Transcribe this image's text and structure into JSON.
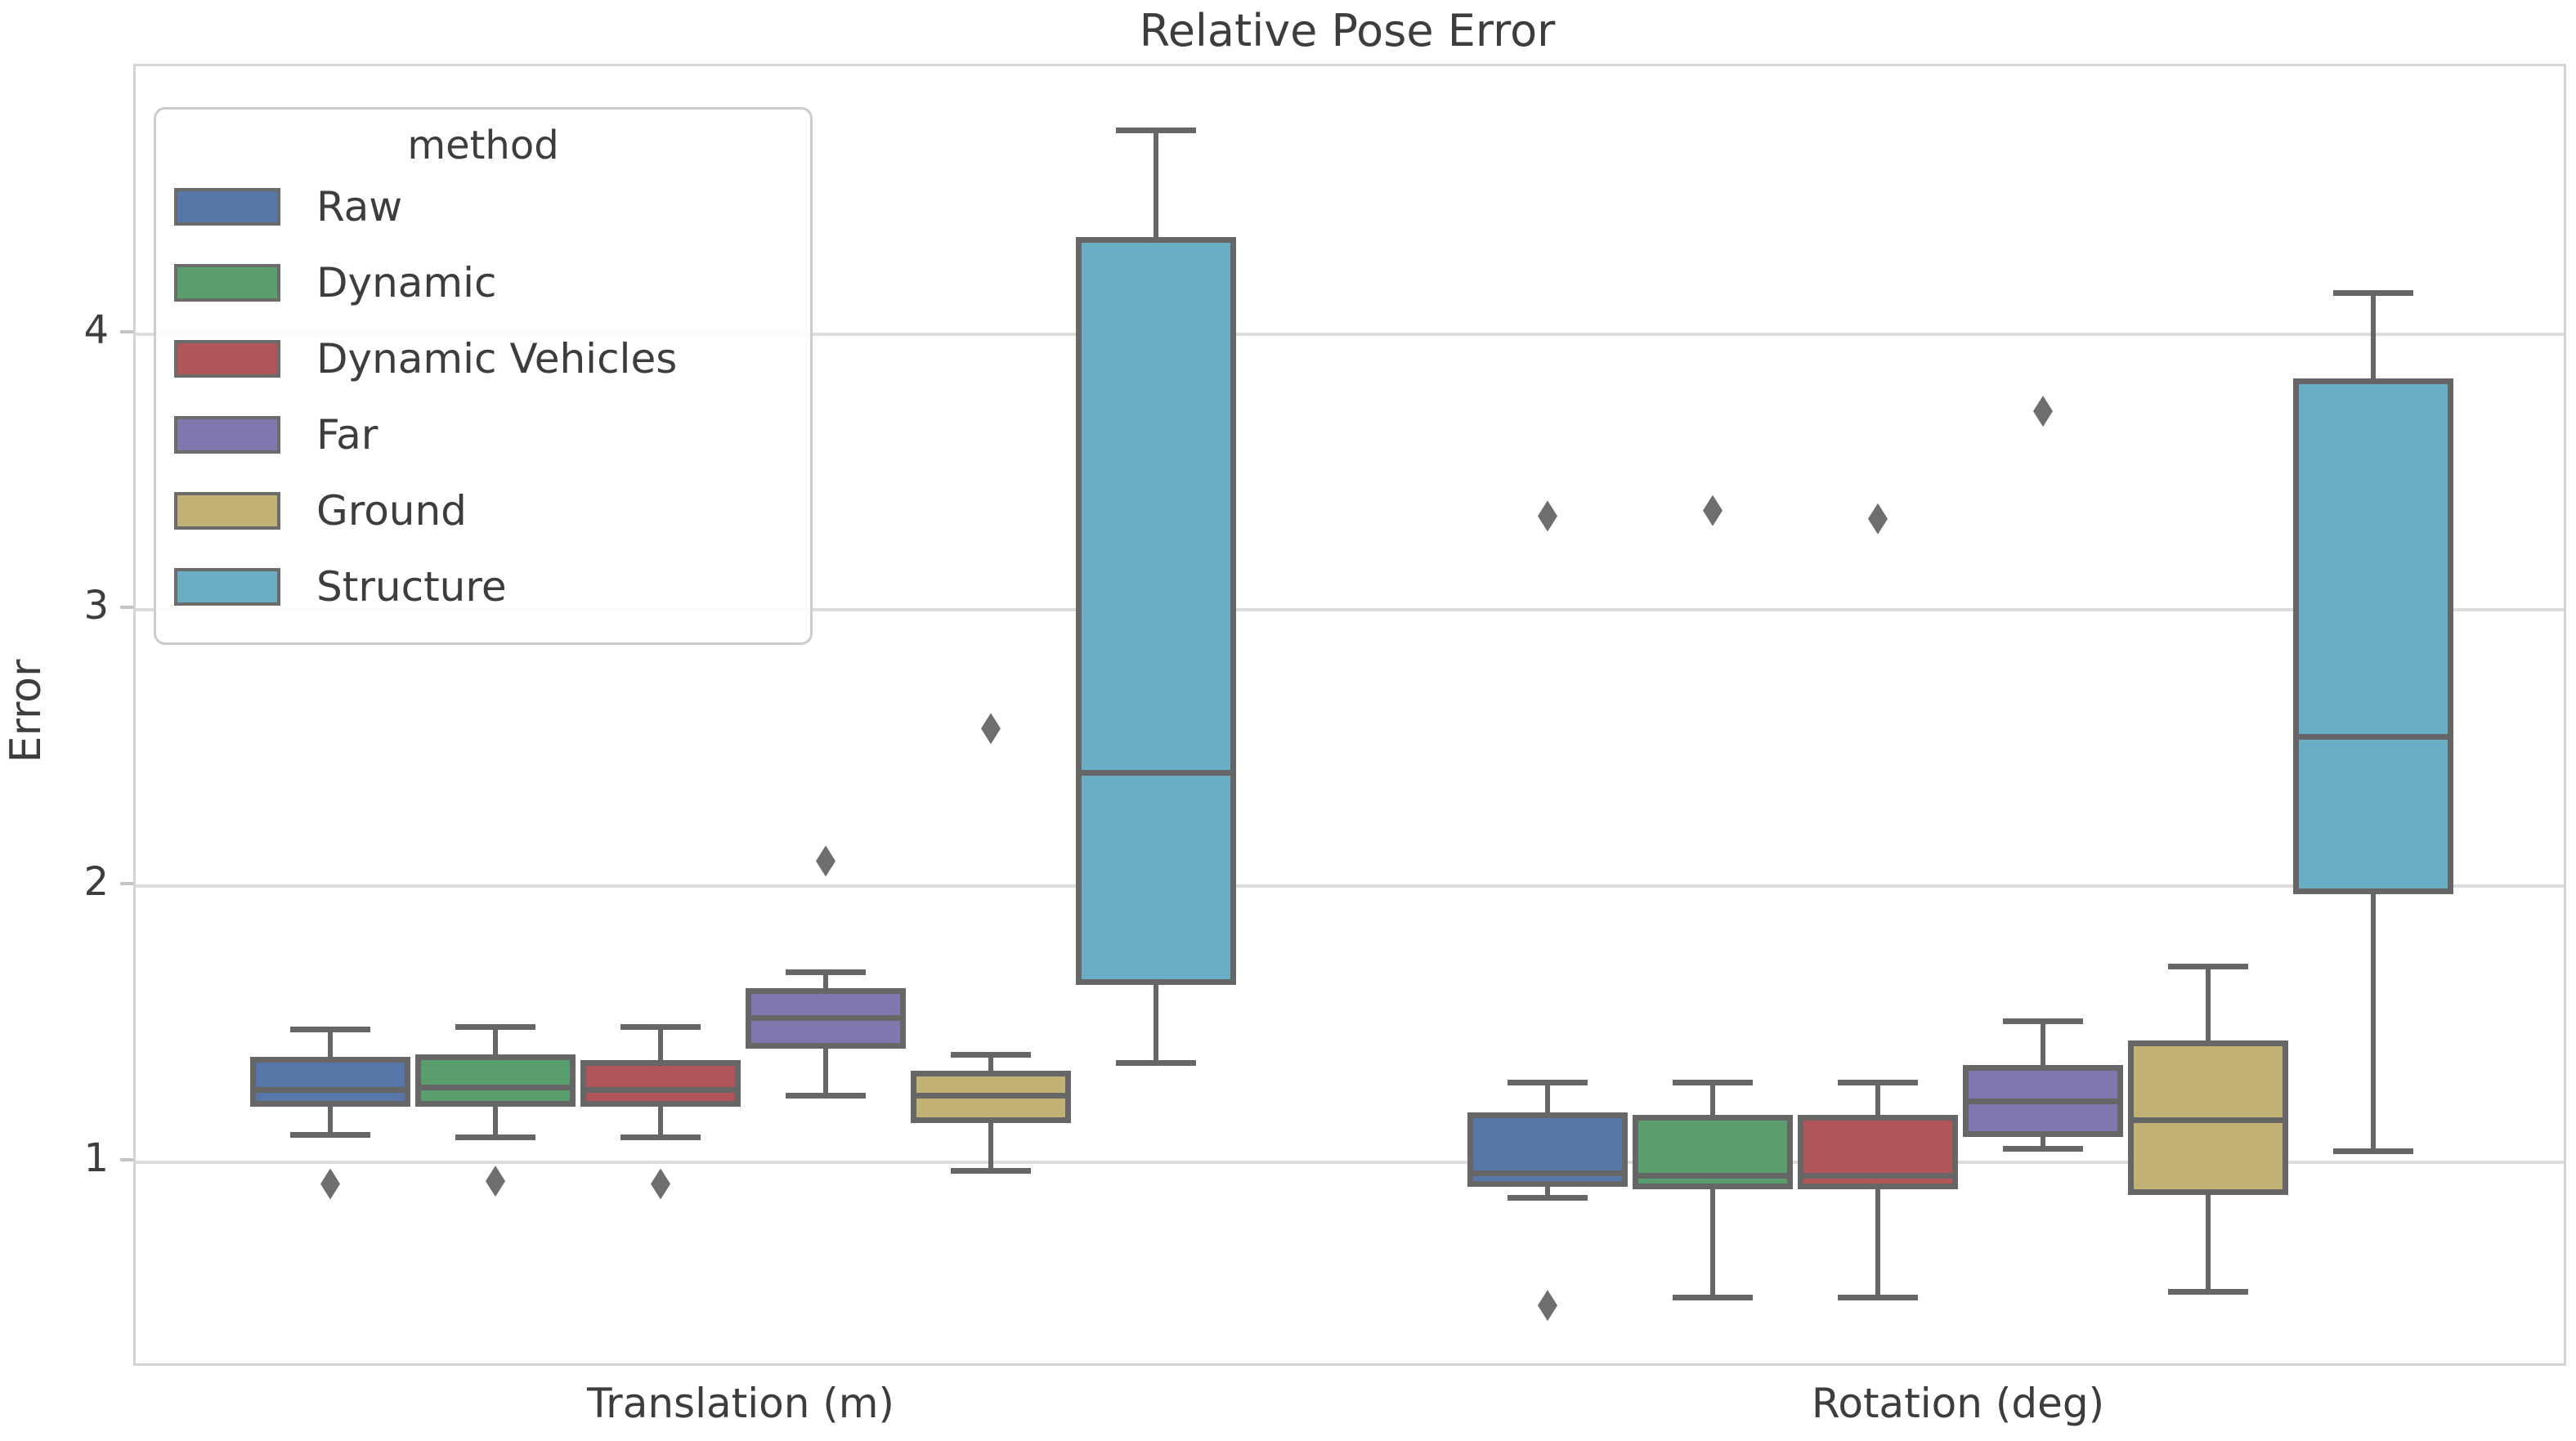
{
  "title": "Relative Pose Error",
  "ylabel": "Error",
  "legend": {
    "title": "method",
    "entries": [
      {
        "label": "Raw",
        "color": "#5877a9"
      },
      {
        "label": "Dynamic",
        "color": "#5b9e6d"
      },
      {
        "label": "Dynamic Vehicles",
        "color": "#b25558"
      },
      {
        "label": "Far",
        "color": "#8377af"
      },
      {
        "label": "Ground",
        "color": "#c1b175"
      },
      {
        "label": "Structure",
        "color": "#6aadc5"
      }
    ]
  },
  "colors": {
    "edge": "#666666",
    "grid": "#dcdcdc",
    "spine": "#d4d4d4",
    "text": "#3d3d3d",
    "background": "#ffffff"
  },
  "chart_data": {
    "type": "boxplot",
    "title": "Relative Pose Error",
    "xlabel": "",
    "ylabel": "Error",
    "categories": [
      "Translation (m)",
      "Rotation (deg)"
    ],
    "hue_title": "method",
    "ylim": [
      0.27,
      4.97
    ],
    "y_ticks": [
      1,
      2,
      3,
      4
    ],
    "grid": "horizontal",
    "legend_position": "upper left",
    "series": [
      {
        "name": "Raw",
        "color": "#5877a9",
        "boxes": [
          {
            "category": "Translation (m)",
            "whislo": 1.1,
            "q1": 1.2,
            "med": 1.26,
            "q3": 1.38,
            "whishi": 1.48,
            "outliers": [
              0.92
            ]
          },
          {
            "category": "Rotation (deg)",
            "whislo": 0.87,
            "q1": 0.91,
            "med": 0.96,
            "q3": 1.18,
            "whishi": 1.29,
            "outliers": [
              0.48,
              3.34
            ]
          }
        ]
      },
      {
        "name": "Dynamic",
        "color": "#5b9e6d",
        "boxes": [
          {
            "category": "Translation (m)",
            "whislo": 1.09,
            "q1": 1.2,
            "med": 1.27,
            "q3": 1.39,
            "whishi": 1.49,
            "outliers": [
              0.93
            ]
          },
          {
            "category": "Rotation (deg)",
            "whislo": 0.51,
            "q1": 0.9,
            "med": 0.95,
            "q3": 1.17,
            "whishi": 1.29,
            "outliers": [
              3.36
            ]
          }
        ]
      },
      {
        "name": "Dynamic Vehicles",
        "color": "#b25558",
        "boxes": [
          {
            "category": "Translation (m)",
            "whislo": 1.09,
            "q1": 1.2,
            "med": 1.26,
            "q3": 1.37,
            "whishi": 1.49,
            "outliers": [
              0.92
            ]
          },
          {
            "category": "Rotation (deg)",
            "whislo": 0.51,
            "q1": 0.9,
            "med": 0.95,
            "q3": 1.17,
            "whishi": 1.29,
            "outliers": [
              3.33
            ]
          }
        ]
      },
      {
        "name": "Far",
        "color": "#8377af",
        "boxes": [
          {
            "category": "Translation (m)",
            "whislo": 1.24,
            "q1": 1.41,
            "med": 1.52,
            "q3": 1.63,
            "whishi": 1.69,
            "outliers": [
              2.09
            ]
          },
          {
            "category": "Rotation (deg)",
            "whislo": 1.05,
            "q1": 1.09,
            "med": 1.22,
            "q3": 1.35,
            "whishi": 1.51,
            "outliers": [
              3.72
            ]
          }
        ]
      },
      {
        "name": "Ground",
        "color": "#c1b175",
        "boxes": [
          {
            "category": "Translation (m)",
            "whislo": 0.97,
            "q1": 1.14,
            "med": 1.24,
            "q3": 1.33,
            "whishi": 1.39,
            "outliers": [
              2.57
            ]
          },
          {
            "category": "Rotation (deg)",
            "whislo": 0.53,
            "q1": 0.88,
            "med": 1.15,
            "q3": 1.44,
            "whishi": 1.71,
            "outliers": []
          }
        ]
      },
      {
        "name": "Structure",
        "color": "#6aadc5",
        "boxes": [
          {
            "category": "Translation (m)",
            "whislo": 1.36,
            "q1": 1.64,
            "med": 2.41,
            "q3": 4.35,
            "whishi": 4.74,
            "outliers": []
          },
          {
            "category": "Rotation (deg)",
            "whislo": 1.04,
            "q1": 1.97,
            "med": 2.54,
            "q3": 3.84,
            "whishi": 4.15,
            "outliers": []
          }
        ]
      }
    ]
  }
}
